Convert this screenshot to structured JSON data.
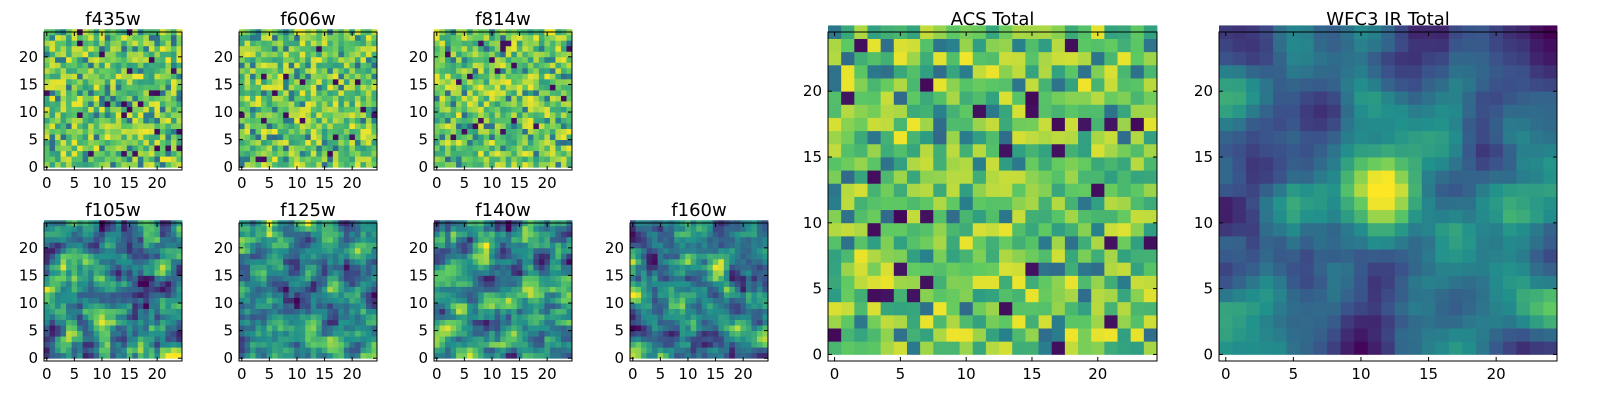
{
  "figure": {
    "background": "#ffffff"
  },
  "chart_data": [
    {
      "type": "heatmap",
      "title": "f435w",
      "xlim": [
        -0.5,
        24.5
      ],
      "ylim": [
        -0.5,
        24.5
      ],
      "xticks": [
        0,
        5,
        10,
        15,
        20
      ],
      "yticks": [
        0,
        5,
        10,
        15,
        20
      ],
      "texture": "pixel-noise"
    },
    {
      "type": "heatmap",
      "title": "f606w",
      "xlim": [
        -0.5,
        24.5
      ],
      "ylim": [
        -0.5,
        24.5
      ],
      "xticks": [
        0,
        5,
        10,
        15,
        20
      ],
      "yticks": [
        0,
        5,
        10,
        15,
        20
      ],
      "texture": "pixel-noise"
    },
    {
      "type": "heatmap",
      "title": "f814w",
      "xlim": [
        -0.5,
        24.5
      ],
      "ylim": [
        -0.5,
        24.5
      ],
      "xticks": [
        0,
        5,
        10,
        15,
        20
      ],
      "yticks": [
        0,
        5,
        10,
        15,
        20
      ],
      "texture": "pixel-noise"
    },
    {
      "type": "heatmap",
      "title": "f105w",
      "xlim": [
        -0.5,
        24.5
      ],
      "ylim": [
        -0.5,
        24.5
      ],
      "xticks": [
        0,
        5,
        10,
        15,
        20
      ],
      "yticks": [
        0,
        5,
        10,
        15,
        20
      ],
      "texture": "correlated-noise"
    },
    {
      "type": "heatmap",
      "title": "f125w",
      "xlim": [
        -0.5,
        24.5
      ],
      "ylim": [
        -0.5,
        24.5
      ],
      "xticks": [
        0,
        5,
        10,
        15,
        20
      ],
      "yticks": [
        0,
        5,
        10,
        15,
        20
      ],
      "texture": "correlated-noise"
    },
    {
      "type": "heatmap",
      "title": "f140w",
      "xlim": [
        -0.5,
        24.5
      ],
      "ylim": [
        -0.5,
        24.5
      ],
      "xticks": [
        0,
        5,
        10,
        15,
        20
      ],
      "yticks": [
        0,
        5,
        10,
        15,
        20
      ],
      "texture": "correlated-noise"
    },
    {
      "type": "heatmap",
      "title": "f160w",
      "xlim": [
        -0.5,
        24.5
      ],
      "ylim": [
        -0.5,
        24.5
      ],
      "xticks": [
        0,
        5,
        10,
        15,
        20
      ],
      "yticks": [
        0,
        5,
        10,
        15,
        20
      ],
      "texture": "correlated-noise"
    },
    {
      "type": "heatmap",
      "title": "ACS Total",
      "xlim": [
        -0.5,
        24.5
      ],
      "ylim": [
        -0.5,
        24.5
      ],
      "xticks": [
        0,
        5,
        10,
        15,
        20
      ],
      "yticks": [
        0,
        5,
        10,
        15,
        20
      ],
      "texture": "pixel-noise"
    },
    {
      "type": "heatmap",
      "title": "WFC3 IR Total",
      "xlim": [
        -0.5,
        24.5
      ],
      "ylim": [
        -0.5,
        24.5
      ],
      "xticks": [
        0,
        5,
        10,
        15,
        20
      ],
      "yticks": [
        0,
        5,
        10,
        15,
        20
      ],
      "texture": "smooth-with-central-peak"
    }
  ],
  "colormap": {
    "name": "viridis",
    "stops": [
      "#440154",
      "#3b528b",
      "#21918c",
      "#5ec962",
      "#fde725"
    ]
  }
}
